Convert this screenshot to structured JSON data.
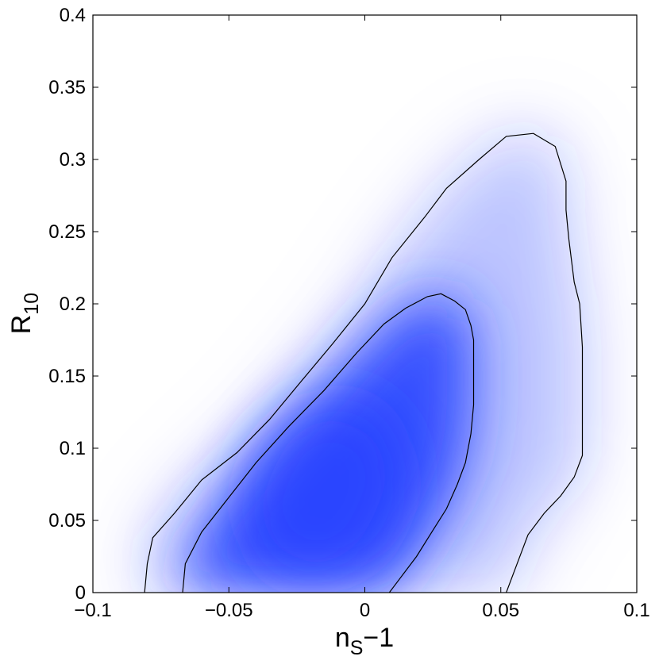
{
  "chart_data": {
    "type": "contour",
    "xlabel": "n",
    "xlabel_sub": "S",
    "xlabel_suffix": "−1",
    "ylabel": "R",
    "ylabel_sub": "10",
    "xlim": [
      -0.1,
      0.1
    ],
    "ylim": [
      0,
      0.4
    ],
    "x_ticks": [
      -0.1,
      -0.05,
      0,
      0.05,
      0.1
    ],
    "x_tick_labels": [
      "−0.1",
      "−0.05",
      "0",
      "0.05",
      "0.1"
    ],
    "y_ticks": [
      0,
      0.05,
      0.1,
      0.15,
      0.2,
      0.25,
      0.3,
      0.35,
      0.4
    ],
    "y_tick_labels": [
      "0",
      "0.05",
      "0.1",
      "0.15",
      "0.2",
      "0.25",
      "0.3",
      "0.35",
      "0.4"
    ],
    "density_color": "#1e3cff",
    "contour_color": "#000000",
    "grid": false,
    "contours": [
      {
        "level": "outer",
        "points": [
          [
            -0.081,
            0.0
          ],
          [
            -0.08,
            0.02
          ],
          [
            -0.078,
            0.038
          ],
          [
            -0.07,
            0.055
          ],
          [
            -0.06,
            0.078
          ],
          [
            -0.047,
            0.097
          ],
          [
            -0.035,
            0.12
          ],
          [
            -0.024,
            0.145
          ],
          [
            -0.012,
            0.172
          ],
          [
            0.0,
            0.2
          ],
          [
            0.01,
            0.232
          ],
          [
            0.022,
            0.26
          ],
          [
            0.03,
            0.28
          ],
          [
            0.042,
            0.3
          ],
          [
            0.052,
            0.316
          ],
          [
            0.062,
            0.318
          ],
          [
            0.07,
            0.309
          ],
          [
            0.074,
            0.285
          ],
          [
            0.074,
            0.265
          ],
          [
            0.075,
            0.245
          ],
          [
            0.077,
            0.215
          ],
          [
            0.079,
            0.2
          ],
          [
            0.08,
            0.17
          ],
          [
            0.08,
            0.135
          ],
          [
            0.08,
            0.115
          ],
          [
            0.08,
            0.095
          ],
          [
            0.077,
            0.08
          ],
          [
            0.072,
            0.067
          ],
          [
            0.066,
            0.055
          ],
          [
            0.06,
            0.04
          ],
          [
            0.056,
            0.02
          ],
          [
            0.052,
            0.0
          ]
        ]
      },
      {
        "level": "inner",
        "points": [
          [
            -0.067,
            0.0
          ],
          [
            -0.066,
            0.02
          ],
          [
            -0.06,
            0.042
          ],
          [
            -0.05,
            0.066
          ],
          [
            -0.04,
            0.09
          ],
          [
            -0.028,
            0.115
          ],
          [
            -0.015,
            0.14
          ],
          [
            -0.003,
            0.166
          ],
          [
            0.007,
            0.186
          ],
          [
            0.015,
            0.197
          ],
          [
            0.023,
            0.205
          ],
          [
            0.028,
            0.207
          ],
          [
            0.033,
            0.202
          ],
          [
            0.037,
            0.196
          ],
          [
            0.039,
            0.185
          ],
          [
            0.04,
            0.175
          ],
          [
            0.04,
            0.15
          ],
          [
            0.04,
            0.13
          ],
          [
            0.039,
            0.11
          ],
          [
            0.037,
            0.09
          ],
          [
            0.034,
            0.075
          ],
          [
            0.03,
            0.058
          ],
          [
            0.025,
            0.043
          ],
          [
            0.019,
            0.025
          ],
          [
            0.013,
            0.01
          ],
          [
            0.009,
            0.0
          ]
        ]
      }
    ],
    "density_peak": [
      -0.015,
      0.07
    ]
  }
}
